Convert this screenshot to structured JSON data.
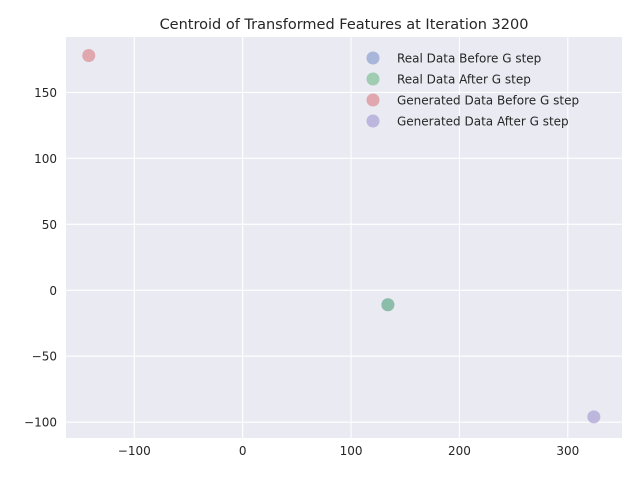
{
  "chart_data": {
    "type": "scatter",
    "title": "Centroid of Transformed Features at Iteration 3200",
    "xlabel": "",
    "ylabel": "",
    "xlim": [
      -163,
      350
    ],
    "ylim": [
      -112,
      192
    ],
    "xticks": [
      -100,
      0,
      100,
      200,
      300
    ],
    "yticks": [
      -100,
      -50,
      0,
      50,
      100,
      150
    ],
    "xtick_labels": [
      "−100",
      "0",
      "100",
      "200",
      "300"
    ],
    "ytick_labels": [
      "−100",
      "−50",
      "0",
      "50",
      "100",
      "150"
    ],
    "grid": true,
    "legend_position": "top-right",
    "series": [
      {
        "name": "Real Data Before G step",
        "color": "#8c9fd0",
        "x": [
          134
        ],
        "y": [
          -11
        ]
      },
      {
        "name": "Real Data After G step",
        "color": "#80c197",
        "x": [
          134
        ],
        "y": [
          -11
        ]
      },
      {
        "name": "Generated Data Before G step",
        "color": "#db8a92",
        "x": [
          -142
        ],
        "y": [
          178
        ]
      },
      {
        "name": "Generated Data After G step",
        "color": "#a9a0d4",
        "x": [
          324
        ],
        "y": [
          -96
        ]
      }
    ]
  }
}
